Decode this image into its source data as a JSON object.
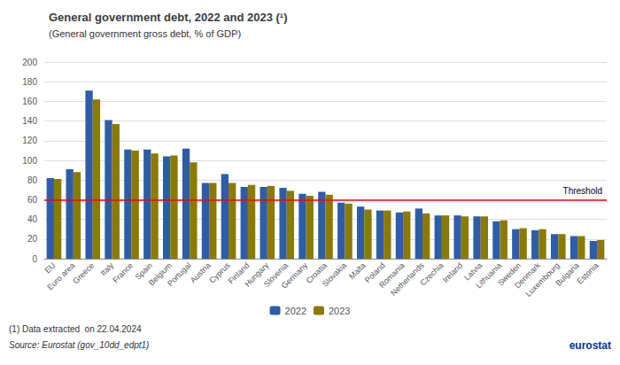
{
  "chart_data": {
    "type": "bar",
    "title": "General government debt, 2022 and 2023 (¹)",
    "subtitle": "(General government gross debt, % of GDP)",
    "footnote": "(1) Data extracted  on 22.04.2024",
    "source": "Source: Eurostat (gov_10dd_edpt1)",
    "logo": {
      "text": "eurostat",
      "color": "#003399"
    },
    "categories": [
      "EU",
      "Euro area",
      "Greece",
      "Italy",
      "France",
      "Spain",
      "Belgium",
      "Portugal",
      "Austria",
      "Cyprus",
      "Finland",
      "Hungary",
      "Slovenia",
      "Germany",
      "Croatia",
      "Slovakia",
      "Malta",
      "Poland",
      "Romania",
      "Netherlands",
      "Czechia",
      "Ireland",
      "Latvia",
      "Lithuania",
      "Sweden",
      "Denmark",
      "Luxembourg",
      "Bulgaria",
      "Estonia"
    ],
    "series": [
      {
        "name": "2022",
        "color": "#2E5DA8",
        "values": [
          82,
          91,
          171,
          141,
          111,
          111,
          104,
          112,
          77,
          86,
          73,
          73,
          72,
          66,
          68,
          57,
          53,
          49,
          47,
          51,
          44,
          44,
          43,
          38,
          30,
          29,
          25,
          23,
          18
        ]
      },
      {
        "name": "2023",
        "color": "#8B7A00",
        "values": [
          81,
          88,
          162,
          137,
          110,
          107,
          105,
          98,
          77,
          77,
          75,
          74,
          69,
          64,
          65,
          56,
          50,
          49,
          48,
          46,
          44,
          43,
          43,
          39,
          31,
          30,
          25,
          23,
          19
        ]
      }
    ],
    "threshold": {
      "value": 60,
      "label": "Threshold",
      "color": "red"
    },
    "ylim": [
      0,
      200
    ],
    "yticks": [
      0,
      20,
      40,
      60,
      80,
      100,
      120,
      140,
      160,
      180,
      200
    ],
    "grid": true,
    "legend": "bottom"
  }
}
